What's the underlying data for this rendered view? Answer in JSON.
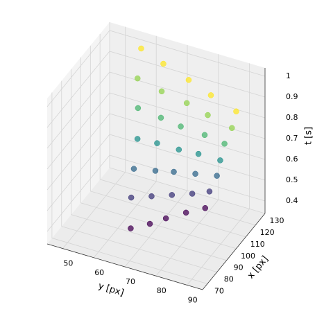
{
  "chart_data": {
    "type": "scatter3d",
    "xlabel": "y [px]",
    "ylabel": "x [px]",
    "zlabel": "t [s]",
    "x": [
      66,
      64,
      63,
      62,
      60,
      58,
      57,
      70,
      69,
      69,
      68,
      68,
      67,
      66,
      73,
      74,
      74,
      75,
      75,
      76,
      76,
      77,
      79,
      80,
      81,
      83,
      84,
      85,
      81,
      83,
      86,
      88,
      90,
      93,
      95
    ],
    "y": [
      84,
      91,
      97,
      104,
      111,
      117,
      124,
      91,
      96,
      100,
      105,
      109,
      113,
      118,
      98,
      101,
      103,
      105,
      107,
      110,
      112,
      106,
      106,
      106,
      106,
      106,
      106,
      106,
      113,
      111,
      109,
      106,
      104,
      102,
      100
    ],
    "z": [
      0.4,
      0.5,
      0.6,
      0.7,
      0.8,
      0.9,
      1.0,
      0.4,
      0.5,
      0.6,
      0.7,
      0.8,
      0.9,
      1.0,
      0.4,
      0.5,
      0.6,
      0.7,
      0.8,
      0.9,
      1.0,
      0.4,
      0.5,
      0.6,
      0.7,
      0.8,
      0.9,
      1.0,
      0.4,
      0.5,
      0.6,
      0.7,
      0.8,
      0.9,
      1.0
    ],
    "xlim": [
      45,
      95
    ],
    "xticks": [
      50,
      60,
      70,
      80,
      90
    ],
    "ylim": [
      65,
      130
    ],
    "yticks": [
      70,
      80,
      90,
      100,
      110,
      120,
      130
    ],
    "zlim": [
      0.34,
      1.04
    ],
    "zticks": [
      0.4,
      0.5,
      0.6,
      0.7,
      0.8,
      0.9,
      1.0
    ],
    "colormap": "viridis",
    "grid": true
  }
}
